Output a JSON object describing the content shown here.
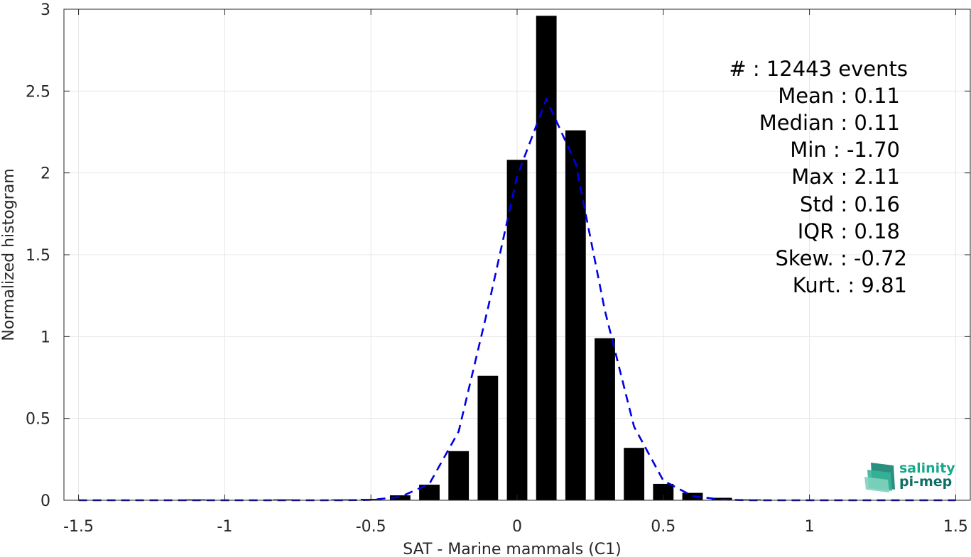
{
  "chart_data": {
    "type": "bar",
    "xlabel": "SAT - Marine mammals (C1)",
    "ylabel": "Normalized histogram",
    "xlim": [
      -1.55,
      1.55
    ],
    "ylim": [
      0,
      3
    ],
    "grid": true,
    "xticks": [
      -1.5,
      -1,
      -0.5,
      0,
      0.5,
      1,
      1.5
    ],
    "xtick_labels": [
      "-1.5",
      "-1",
      "-0.5",
      "0",
      "0.5",
      "1",
      "1.5"
    ],
    "yticks": [
      0,
      0.5,
      1,
      1.5,
      2,
      2.5,
      3
    ],
    "ytick_labels": [
      "0",
      "0.5",
      "1",
      "1.5",
      "2",
      "2.5",
      "3"
    ],
    "bar_width": 0.07,
    "bars": [
      {
        "x": -1.5,
        "value": 0.002
      },
      {
        "x": -1.4,
        "value": 0.002
      },
      {
        "x": -1.3,
        "value": 0.002
      },
      {
        "x": -1.2,
        "value": 0.002
      },
      {
        "x": -1.1,
        "value": 0.005
      },
      {
        "x": -1.0,
        "value": 0.002
      },
      {
        "x": -0.9,
        "value": 0.002
      },
      {
        "x": -0.8,
        "value": 0.005
      },
      {
        "x": -0.7,
        "value": 0.002
      },
      {
        "x": -0.6,
        "value": 0.005
      },
      {
        "x": -0.5,
        "value": 0.008
      },
      {
        "x": -0.4,
        "value": 0.03
      },
      {
        "x": -0.3,
        "value": 0.095
      },
      {
        "x": -0.2,
        "value": 0.3
      },
      {
        "x": -0.1,
        "value": 0.76
      },
      {
        "x": 0.0,
        "value": 2.08
      },
      {
        "x": 0.1,
        "value": 2.96
      },
      {
        "x": 0.2,
        "value": 2.26
      },
      {
        "x": 0.3,
        "value": 0.99
      },
      {
        "x": 0.4,
        "value": 0.32
      },
      {
        "x": 0.5,
        "value": 0.1
      },
      {
        "x": 0.6,
        "value": 0.045
      },
      {
        "x": 0.7,
        "value": 0.015
      },
      {
        "x": 0.8,
        "value": 0.005
      },
      {
        "x": 0.9,
        "value": 0.002
      },
      {
        "x": 1.0,
        "value": 0.002
      },
      {
        "x": 1.1,
        "value": 0.002
      },
      {
        "x": 1.2,
        "value": 0.002
      },
      {
        "x": 1.3,
        "value": 0.002
      },
      {
        "x": 1.4,
        "value": 0.002
      },
      {
        "x": 1.5,
        "value": 0.002
      }
    ],
    "fit_curve": {
      "style": "dashed",
      "color": "#0000e6",
      "x": [
        -1.5,
        -1.4,
        -1.3,
        -1.2,
        -1.1,
        -1.0,
        -0.9,
        -0.8,
        -0.7,
        -0.6,
        -0.5,
        -0.4,
        -0.3,
        -0.2,
        -0.1,
        0.0,
        0.1,
        0.2,
        0.3,
        0.4,
        0.5,
        0.6,
        0.7,
        0.8,
        0.9,
        1.0,
        1.1,
        1.2,
        1.3,
        1.4,
        1.5
      ],
      "y": [
        0,
        0,
        0,
        0,
        0,
        0,
        0,
        0,
        0,
        0,
        0.002,
        0.02,
        0.1,
        0.42,
        1.17,
        1.98,
        2.45,
        2.06,
        1.16,
        0.45,
        0.12,
        0.025,
        0.004,
        0,
        0,
        0,
        0,
        0,
        0,
        0,
        0
      ]
    },
    "bar_color": "#000000"
  },
  "stats": {
    "lines": [
      "#  : 12443 events",
      "Mean : 0.11",
      "Median : 0.11",
      "Min : -1.70",
      "Max : 2.11",
      "Std : 0.16",
      "IQR : 0.18",
      "Skew. : -0.72",
      "Kurt. : 9.81"
    ]
  },
  "logo": {
    "line1": "salinity",
    "line2": "pi-mep",
    "color1": "#1aa88c",
    "color2": "#0e6e63"
  }
}
